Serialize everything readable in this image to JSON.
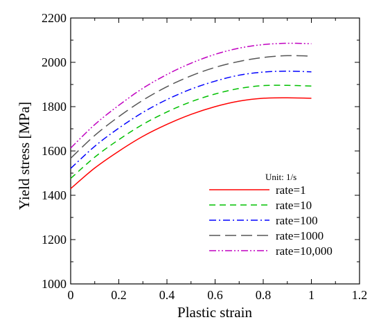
{
  "chart_data": {
    "type": "line",
    "xlabel": "Plastic strain",
    "ylabel": "Yield stress [MPa]",
    "xlim": [
      0,
      1.2
    ],
    "ylim": [
      1000,
      2200
    ],
    "x_ticks": [
      "0",
      "0.2",
      "0.4",
      "0.6",
      "0.8",
      "1",
      "1.2"
    ],
    "y_ticks": [
      "1000",
      "1200",
      "1400",
      "1600",
      "1800",
      "2000",
      "2200"
    ],
    "grid": false,
    "legend_title": "Unit: 1/s",
    "legend_position": "lower-right",
    "series": [
      {
        "name": "rate=1",
        "color": "#ff0000",
        "dash": "solid",
        "x": [
          0,
          0.1,
          0.2,
          0.3,
          0.4,
          0.5,
          0.6,
          0.7,
          0.8,
          0.9,
          1.0
        ],
        "y": [
          1430,
          1523,
          1599,
          1666,
          1720,
          1765,
          1800,
          1825,
          1838,
          1840,
          1838
        ]
      },
      {
        "name": "rate=10",
        "color": "#00c000",
        "dash": "dashed",
        "x": [
          0,
          0.1,
          0.2,
          0.3,
          0.4,
          0.5,
          0.6,
          0.7,
          0.8,
          0.9,
          1.0
        ],
        "y": [
          1476,
          1572,
          1651,
          1720,
          1776,
          1822,
          1857,
          1882,
          1895,
          1896,
          1893
        ]
      },
      {
        "name": "rate=100",
        "color": "#0000ff",
        "dash": "dash-dot",
        "x": [
          0,
          0.1,
          0.2,
          0.3,
          0.4,
          0.5,
          0.6,
          0.7,
          0.8,
          0.9,
          1.0
        ],
        "y": [
          1521,
          1621,
          1703,
          1774,
          1832,
          1879,
          1915,
          1942,
          1956,
          1960,
          1957
        ]
      },
      {
        "name": "rate=1000",
        "color": "#555555",
        "dash": "long-dash",
        "x": [
          0,
          0.1,
          0.2,
          0.3,
          0.4,
          0.5,
          0.6,
          0.7,
          0.8,
          0.9,
          1.0
        ],
        "y": [
          1567,
          1670,
          1755,
          1829,
          1890,
          1939,
          1977,
          2004,
          2022,
          2030,
          2028
        ]
      },
      {
        "name": "rate=10,000",
        "color": "#c000c0",
        "dash": "dash-dot-dot",
        "x": [
          0,
          0.1,
          0.2,
          0.3,
          0.4,
          0.5,
          0.6,
          0.7,
          0.8,
          0.9,
          1.0
        ],
        "y": [
          1613,
          1719,
          1806,
          1883,
          1945,
          1996,
          2036,
          2064,
          2080,
          2086,
          2084
        ]
      }
    ]
  }
}
